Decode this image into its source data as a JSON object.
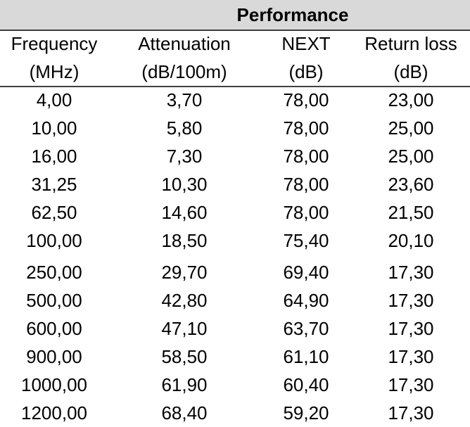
{
  "header": {
    "title": "Performance"
  },
  "table": {
    "columns": [
      [
        "Frequency",
        "(MHz)"
      ],
      [
        "Attenuation",
        "(dB/100m)"
      ],
      [
        "NEXT",
        "(dB)"
      ],
      [
        "Return loss",
        "(dB)"
      ]
    ],
    "rows": [
      [
        "4,00",
        "3,70",
        "78,00",
        "23,00"
      ],
      [
        "10,00",
        "5,80",
        "78,00",
        "25,00"
      ],
      [
        "16,00",
        "7,30",
        "78,00",
        "25,00"
      ],
      [
        "31,25",
        "10,30",
        "78,00",
        "23,60"
      ],
      [
        "62,50",
        "14,60",
        "78,00",
        "21,50"
      ],
      [
        "100,00",
        "18,50",
        "75,40",
        "20,10"
      ],
      [
        "250,00",
        "29,70",
        "69,40",
        "17,30"
      ],
      [
        "500,00",
        "42,80",
        "64,90",
        "17,30"
      ],
      [
        "600,00",
        "47,10",
        "63,70",
        "17,30"
      ],
      [
        "900,00",
        "58,50",
        "61,10",
        "17,30"
      ],
      [
        "1000,00",
        "61,90",
        "60,40",
        "17,30"
      ],
      [
        "1200,00",
        "68,40",
        "59,20",
        "17,30"
      ]
    ]
  }
}
